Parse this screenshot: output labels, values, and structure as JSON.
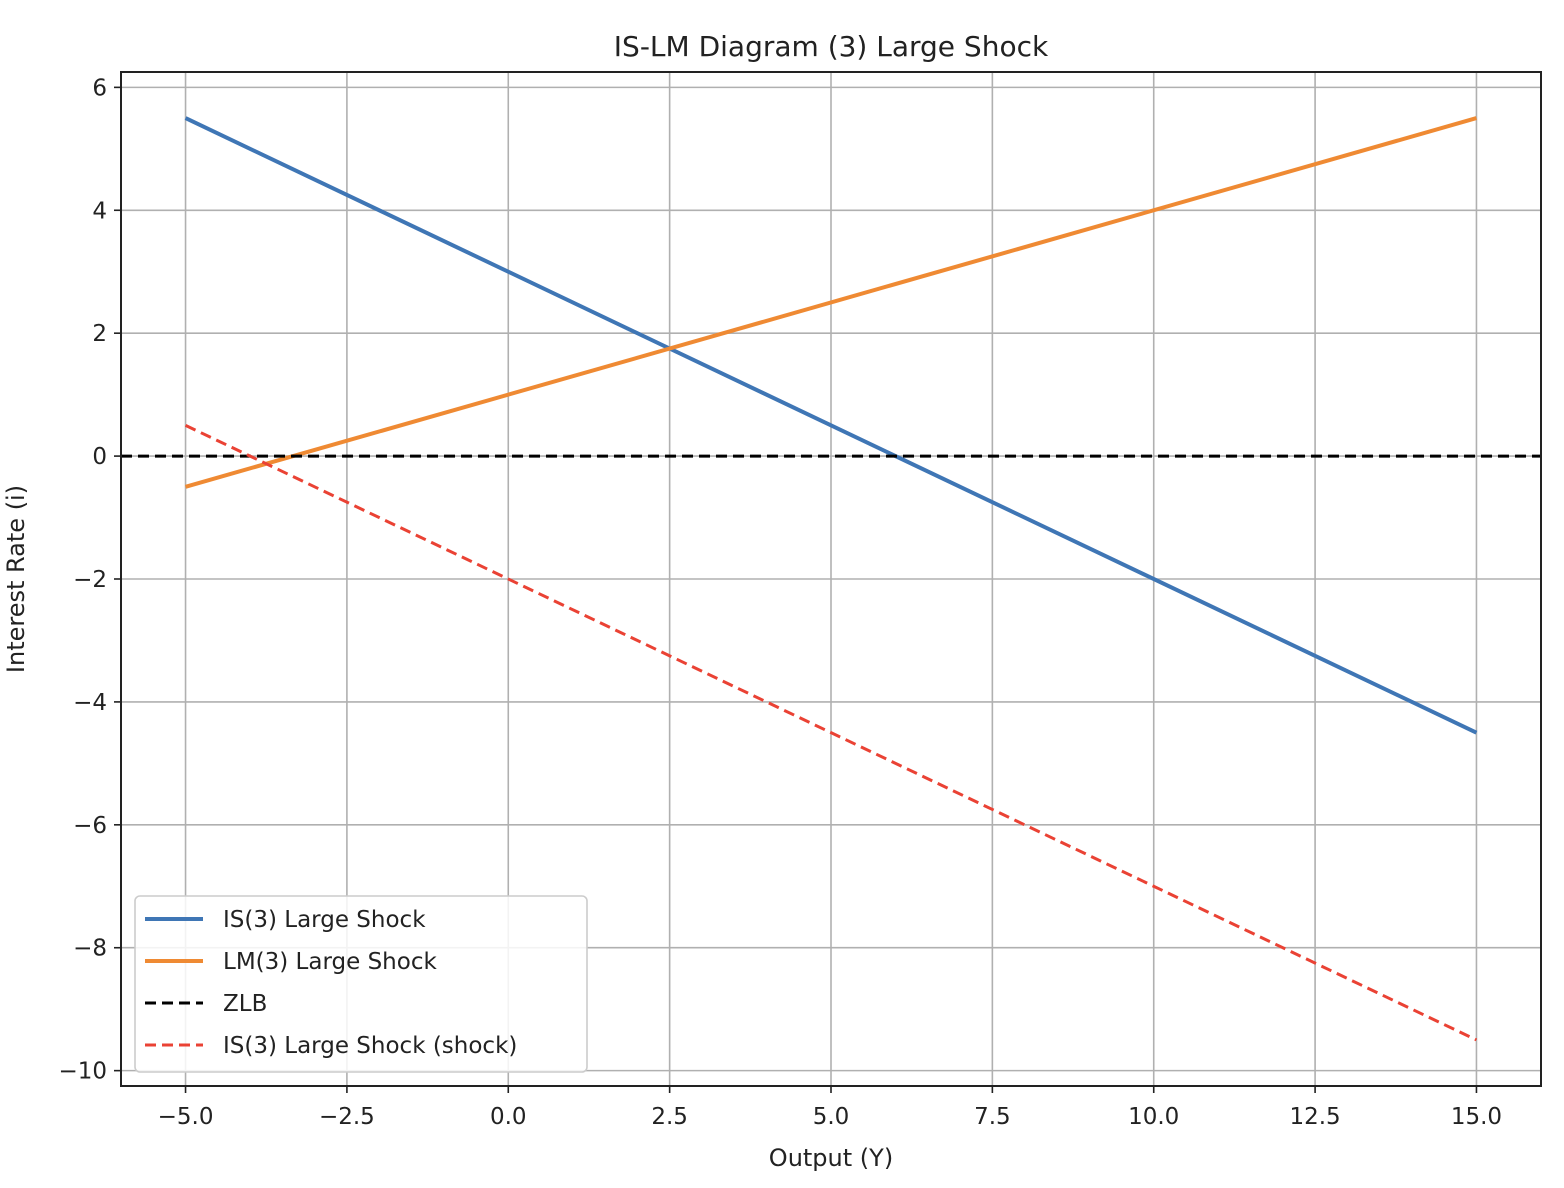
{
  "chart_data": {
    "type": "line",
    "title": "IS-LM Diagram (3) Large Shock",
    "xlabel": "Output (Y)",
    "ylabel": "Interest Rate (i)",
    "xlim": [
      -6,
      16
    ],
    "ylim": [
      -10.25,
      6.25
    ],
    "xticks": [
      -5.0,
      -2.5,
      0.0,
      2.5,
      5.0,
      7.5,
      10.0,
      12.5,
      15.0
    ],
    "xtick_labels": [
      "−5.0",
      "−2.5",
      "0.0",
      "2.5",
      "5.0",
      "7.5",
      "10.0",
      "12.5",
      "15.0"
    ],
    "yticks": [
      6,
      4,
      2,
      0,
      -2,
      -4,
      -6,
      -8,
      -10
    ],
    "ytick_labels": [
      "6",
      "4",
      "2",
      "0",
      "−2",
      "−4",
      "−6",
      "−8",
      "−10"
    ],
    "grid": true,
    "legend_position": "lower-left",
    "series": [
      {
        "name": "IS(3) Large Shock",
        "x": [
          -5,
          15
        ],
        "y": [
          5.5,
          -4.5
        ],
        "color": "#3f76b5",
        "dash": "solid"
      },
      {
        "name": "LM(3) Large Shock",
        "x": [
          -5,
          15
        ],
        "y": [
          -0.5,
          5.5
        ],
        "color": "#ef8a33",
        "dash": "solid"
      },
      {
        "name": "ZLB",
        "x": [
          -6,
          16
        ],
        "y": [
          0,
          0
        ],
        "color": "#000000",
        "dash": "dashed"
      },
      {
        "name": "IS(3) Large Shock (shock)",
        "x": [
          -5,
          15
        ],
        "y": [
          0.5,
          -9.5
        ],
        "color": "#ea4234",
        "dash": "dashed"
      }
    ]
  }
}
